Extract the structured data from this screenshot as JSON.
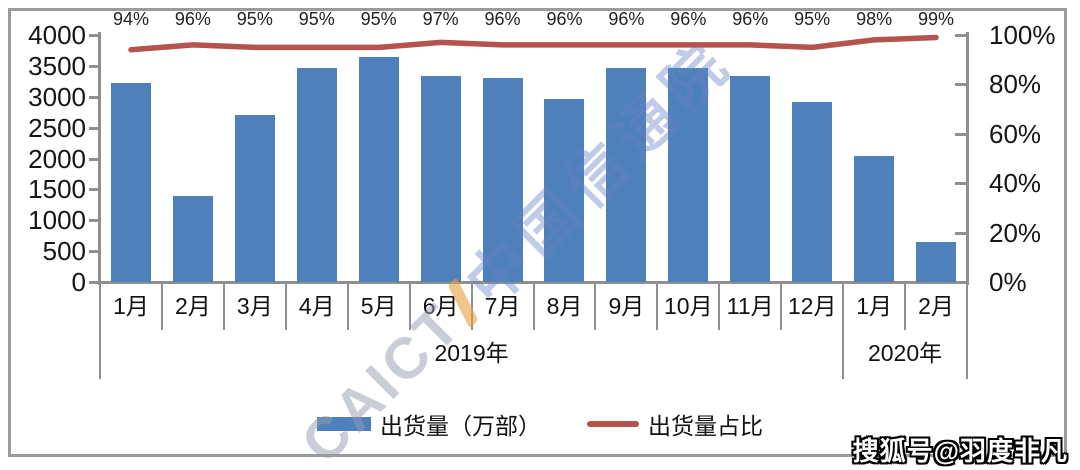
{
  "chart_data": {
    "type": "bar",
    "subtype": "combo-bar-line",
    "title": "",
    "categories": [
      "1月",
      "2月",
      "3月",
      "4月",
      "5月",
      "6月",
      "7月",
      "8月",
      "9月",
      "10月",
      "11月",
      "12月",
      "1月",
      "2月"
    ],
    "category_groups": [
      {
        "label": "2019年",
        "span": 12
      },
      {
        "label": "2020年",
        "span": 2
      }
    ],
    "series": [
      {
        "name": "出货量（万部）",
        "type": "bar",
        "axis": "left",
        "color": "#4e80bc",
        "values": [
          3220,
          1400,
          2700,
          3470,
          3650,
          3330,
          3300,
          2960,
          3470,
          3470,
          3330,
          2910,
          2040,
          640
        ]
      },
      {
        "name": "出货量占比",
        "type": "line",
        "axis": "right",
        "color": "#b5534f",
        "values": [
          94,
          96,
          95,
          95,
          95,
          97,
          96,
          96,
          96,
          96,
          96,
          95,
          98,
          99
        ],
        "labels": [
          "94%",
          "96%",
          "95%",
          "95%",
          "95%",
          "97%",
          "96%",
          "96%",
          "96%",
          "96%",
          "96%",
          "95%",
          "98%",
          "99%"
        ]
      }
    ],
    "left_axis": {
      "min": 0,
      "max": 4000,
      "step": 500,
      "tick_labels": [
        "4000",
        "3500",
        "3000",
        "2500",
        "2000",
        "1500",
        "1000",
        "500",
        "0"
      ]
    },
    "right_axis": {
      "min": 0,
      "max": 100,
      "step": 20,
      "tick_labels": [
        "100%",
        "80%",
        "60%",
        "40%",
        "20%",
        "0%"
      ]
    },
    "grid": false,
    "legend_position": "bottom"
  },
  "legend": {
    "items": [
      {
        "label": "出货量（万部）",
        "swatch": "bar",
        "color": "#4e80bc"
      },
      {
        "label": "出货量占比",
        "swatch": "line",
        "color": "#b5534f"
      }
    ]
  },
  "watermark": {
    "latin": "CAICT",
    "cn": "中国信通院",
    "accent_color": "#e8a03c"
  },
  "badge": {
    "text": "搜狐号@羽度非凡"
  },
  "colors": {
    "bar": "#4e80bc",
    "line": "#b5534f",
    "axis": "#8f8f8f",
    "frame": "#9b9b9b",
    "text": "#1f1f1f"
  }
}
